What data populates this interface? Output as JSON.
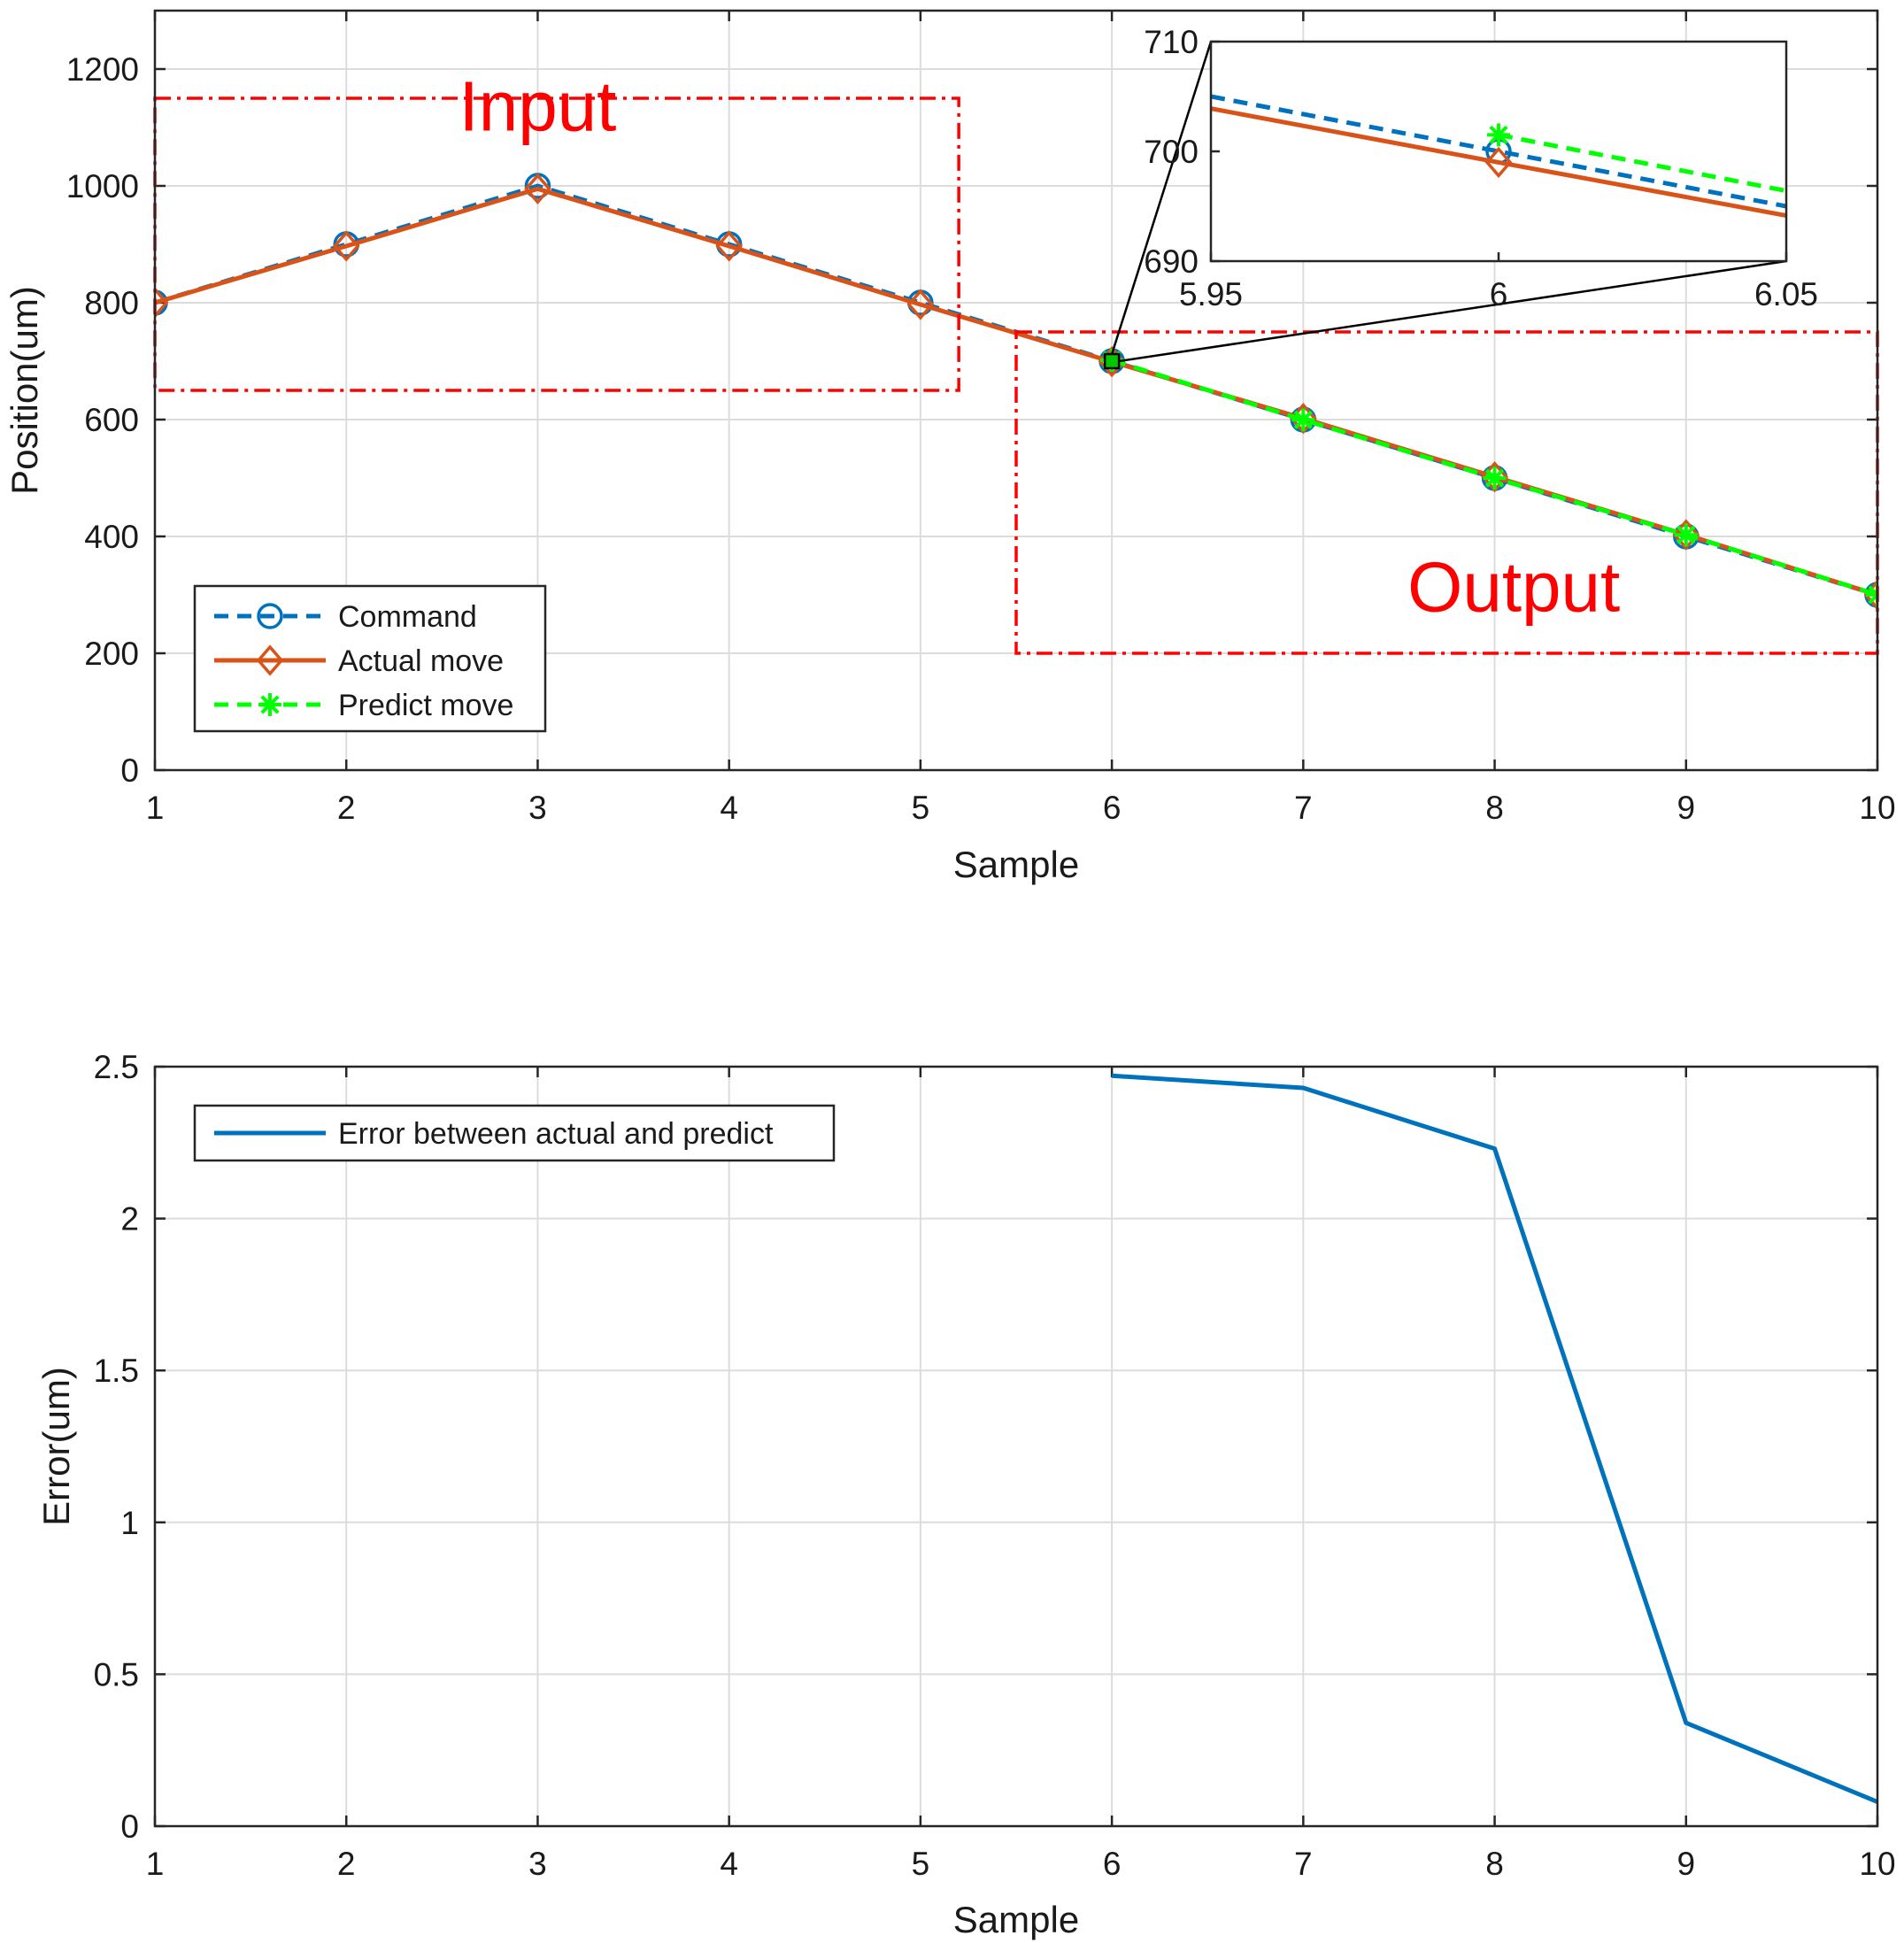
{
  "chart_data": [
    {
      "type": "line",
      "xlabel": "Sample",
      "ylabel": "Position(um)",
      "xlim": [
        1,
        10
      ],
      "ylim": [
        0,
        1300
      ],
      "xticks": [
        "1",
        "2",
        "3",
        "4",
        "5",
        "6",
        "7",
        "8",
        "9",
        "10"
      ],
      "yticks": [
        "0",
        "200",
        "400",
        "600",
        "800",
        "1000",
        "1200"
      ],
      "grid": true,
      "legend_position": "bottom-left",
      "series": [
        {
          "name": "Command",
          "color": "#0072BD",
          "line": "dashed",
          "marker": "circle",
          "x": [
            1,
            2,
            3,
            4,
            5,
            6,
            7,
            8,
            9,
            10
          ],
          "y": [
            800,
            900,
            1000,
            900,
            800,
            700,
            600,
            500,
            400,
            300
          ]
        },
        {
          "name": "Actual move",
          "color": "#D95319",
          "line": "solid",
          "marker": "diamond",
          "x": [
            1,
            2,
            3,
            4,
            5,
            6,
            7,
            8,
            9,
            10
          ],
          "y": [
            800,
            897,
            995,
            897,
            797,
            699,
            602,
            502,
            403,
            300
          ]
        },
        {
          "name": "Predict move",
          "color": "#00FF00",
          "line": "dashed",
          "marker": "asterisk",
          "x": [
            6,
            7,
            8,
            9,
            10
          ],
          "y": [
            701.5,
            599.6,
            499.8,
            402.7,
            300.1
          ]
        }
      ],
      "annotations": [
        {
          "text": "Input",
          "x_range": [
            1,
            5.2
          ],
          "y_range": [
            650,
            1150
          ],
          "color": "#FF0000"
        },
        {
          "text": "Output",
          "x_range": [
            5.5,
            10
          ],
          "y_range": [
            200,
            750
          ],
          "color": "#FF0000"
        }
      ],
      "inset": {
        "xlim": [
          5.95,
          6.05
        ],
        "ylim": [
          690,
          710
        ],
        "xticks": [
          "5.95",
          "6",
          "6.05"
        ],
        "yticks": [
          "690",
          "700",
          "710"
        ],
        "zoom_center": [
          6,
          700
        ]
      }
    },
    {
      "type": "line",
      "xlabel": "Sample",
      "ylabel": "Error(um)",
      "xlim": [
        1,
        10
      ],
      "ylim": [
        0,
        2.5
      ],
      "xticks": [
        "1",
        "2",
        "3",
        "4",
        "5",
        "6",
        "7",
        "8",
        "9",
        "10"
      ],
      "yticks": [
        "0",
        "0.5",
        "1",
        "1.5",
        "2",
        "2.5"
      ],
      "grid": true,
      "legend_position": "top-left",
      "series": [
        {
          "name": "Error between actual and predict",
          "color": "#0072BD",
          "line": "solid",
          "x": [
            6,
            7,
            8,
            9,
            10
          ],
          "y": [
            2.47,
            2.43,
            2.23,
            0.34,
            0.08
          ]
        }
      ]
    }
  ]
}
